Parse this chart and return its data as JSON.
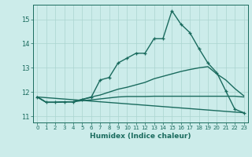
{
  "xlabel": "Humidex (Indice chaleur)",
  "bg_color": "#ccecea",
  "line_color": "#1a6b5e",
  "grid_color": "#aad4d0",
  "xlim": [
    -0.5,
    23.5
  ],
  "ylim": [
    10.75,
    15.6
  ],
  "xticks": [
    0,
    1,
    2,
    3,
    4,
    5,
    6,
    7,
    8,
    9,
    10,
    11,
    12,
    13,
    14,
    15,
    16,
    17,
    18,
    19,
    20,
    21,
    22,
    23
  ],
  "yticks": [
    11,
    12,
    13,
    14,
    15
  ],
  "series": [
    {
      "x": [
        0,
        1,
        2,
        3,
        4,
        5,
        6,
        7,
        8,
        9,
        10,
        11,
        12,
        13,
        14,
        15,
        16,
        17,
        18,
        19,
        20,
        21,
        22,
        23
      ],
      "y": [
        11.8,
        11.58,
        11.58,
        11.6,
        11.6,
        11.7,
        11.78,
        12.5,
        12.6,
        13.2,
        13.4,
        13.6,
        13.6,
        14.2,
        14.2,
        15.35,
        14.8,
        14.45,
        13.8,
        13.2,
        12.8,
        12.05,
        11.3,
        11.15
      ],
      "marker": true,
      "linewidth": 1.0
    },
    {
      "x": [
        0,
        1,
        2,
        3,
        4,
        5,
        6,
        7,
        8,
        9,
        10,
        11,
        12,
        13,
        14,
        15,
        16,
        17,
        18,
        19,
        20,
        21,
        22,
        23
      ],
      "y": [
        11.8,
        11.58,
        11.58,
        11.6,
        11.6,
        11.7,
        11.8,
        11.88,
        12.0,
        12.12,
        12.2,
        12.3,
        12.4,
        12.55,
        12.65,
        12.75,
        12.85,
        12.93,
        13.0,
        13.05,
        12.75,
        12.5,
        12.15,
        11.85
      ],
      "marker": false,
      "linewidth": 1.0
    },
    {
      "x": [
        0,
        1,
        2,
        3,
        4,
        5,
        6,
        7,
        8,
        9,
        10,
        11,
        12,
        13,
        14,
        15,
        16,
        17,
        18,
        19,
        20,
        21,
        22,
        23
      ],
      "y": [
        11.8,
        11.58,
        11.58,
        11.6,
        11.6,
        11.65,
        11.68,
        11.72,
        11.76,
        11.8,
        11.82,
        11.82,
        11.82,
        11.83,
        11.83,
        11.83,
        11.83,
        11.83,
        11.83,
        11.83,
        11.83,
        11.83,
        11.83,
        11.8
      ],
      "marker": false,
      "linewidth": 1.0
    },
    {
      "x": [
        0,
        23
      ],
      "y": [
        11.8,
        11.15
      ],
      "marker": false,
      "linewidth": 1.0
    }
  ]
}
